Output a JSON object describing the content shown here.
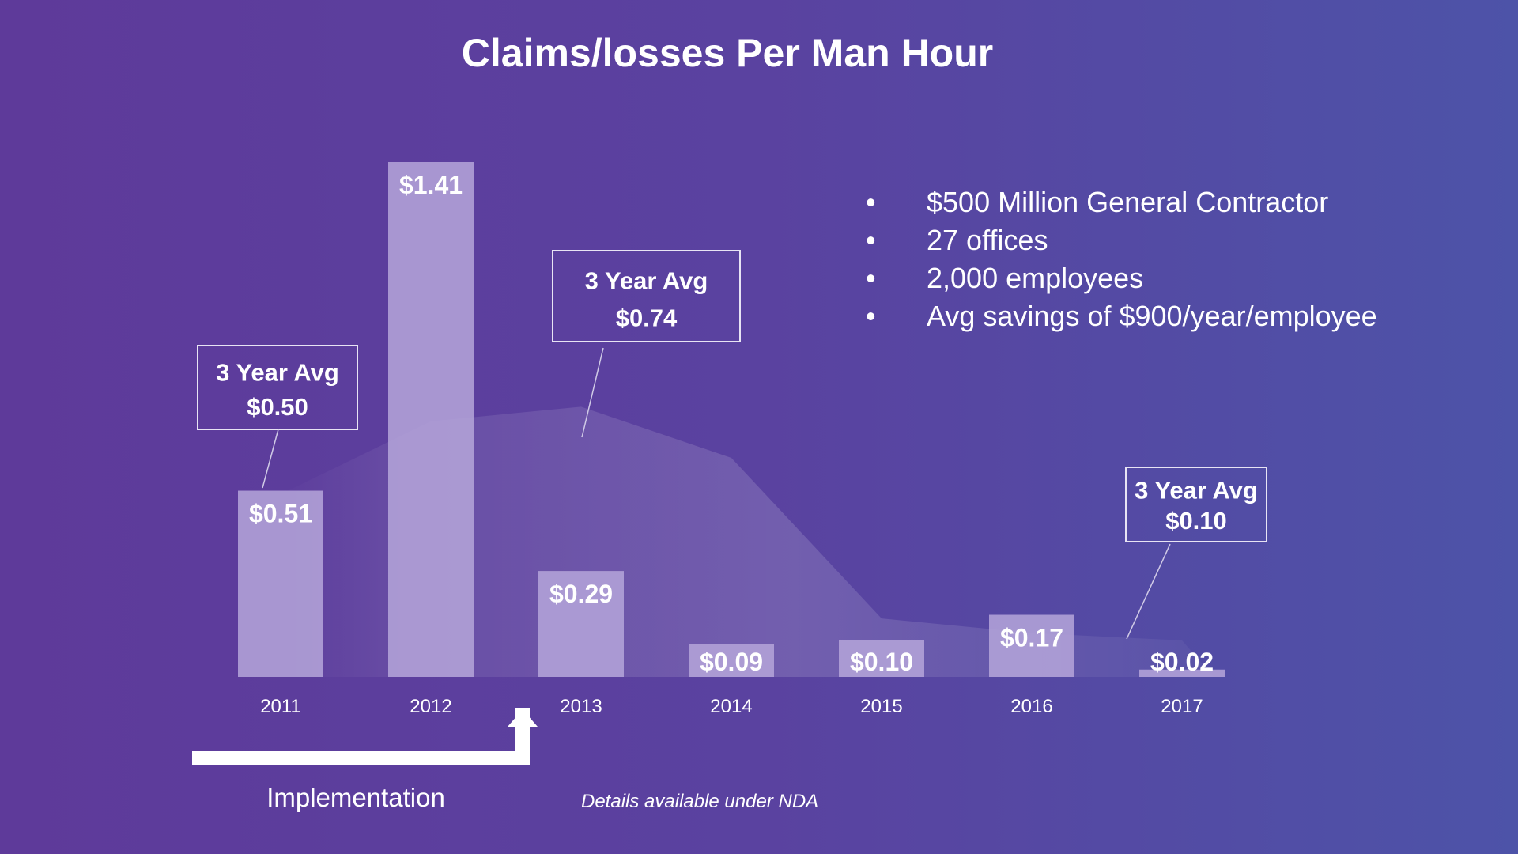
{
  "slide": {
    "title": "Claims/losses Per Man Hour",
    "bullets": [
      "$500 Million General Contractor",
      "27 offices",
      "2,000 employees",
      "Avg savings of $900/year/employee"
    ],
    "implementation_label": "Implementation",
    "nda_note": "Details available under NDA",
    "colors": {
      "background_left": "#5e3a9a",
      "background_right": "#4d53a8",
      "bar_fill": "#b3a3d8",
      "text": "#ffffff"
    }
  },
  "chart_data": {
    "type": "bar",
    "title": "Claims/losses Per Man Hour",
    "xlabel": "",
    "ylabel": "",
    "categories": [
      "2011",
      "2012",
      "2013",
      "2014",
      "2015",
      "2016",
      "2017"
    ],
    "values": [
      0.51,
      1.41,
      0.29,
      0.09,
      0.1,
      0.17,
      0.02
    ],
    "value_labels": [
      "$0.51",
      "$1.41",
      "$0.29",
      "$0.09",
      "$0.10",
      "$0.17",
      "$0.02"
    ],
    "ylim": [
      0,
      1.41
    ],
    "grid": false,
    "legend": "none",
    "background_area": {
      "x": [
        "2011",
        "2012",
        "2013",
        "2014",
        "2015",
        "2016",
        "2017"
      ],
      "values": [
        0.5,
        0.7,
        0.74,
        0.6,
        0.16,
        0.12,
        0.1
      ]
    },
    "callouts": [
      {
        "heading": "3 Year Avg",
        "value": "$0.50",
        "points_to": "2011"
      },
      {
        "heading": "3 Year Avg",
        "value": "$0.74",
        "points_to": "2013"
      },
      {
        "heading": "3 Year Avg",
        "value": "$0.10",
        "points_to": "2017"
      }
    ]
  }
}
